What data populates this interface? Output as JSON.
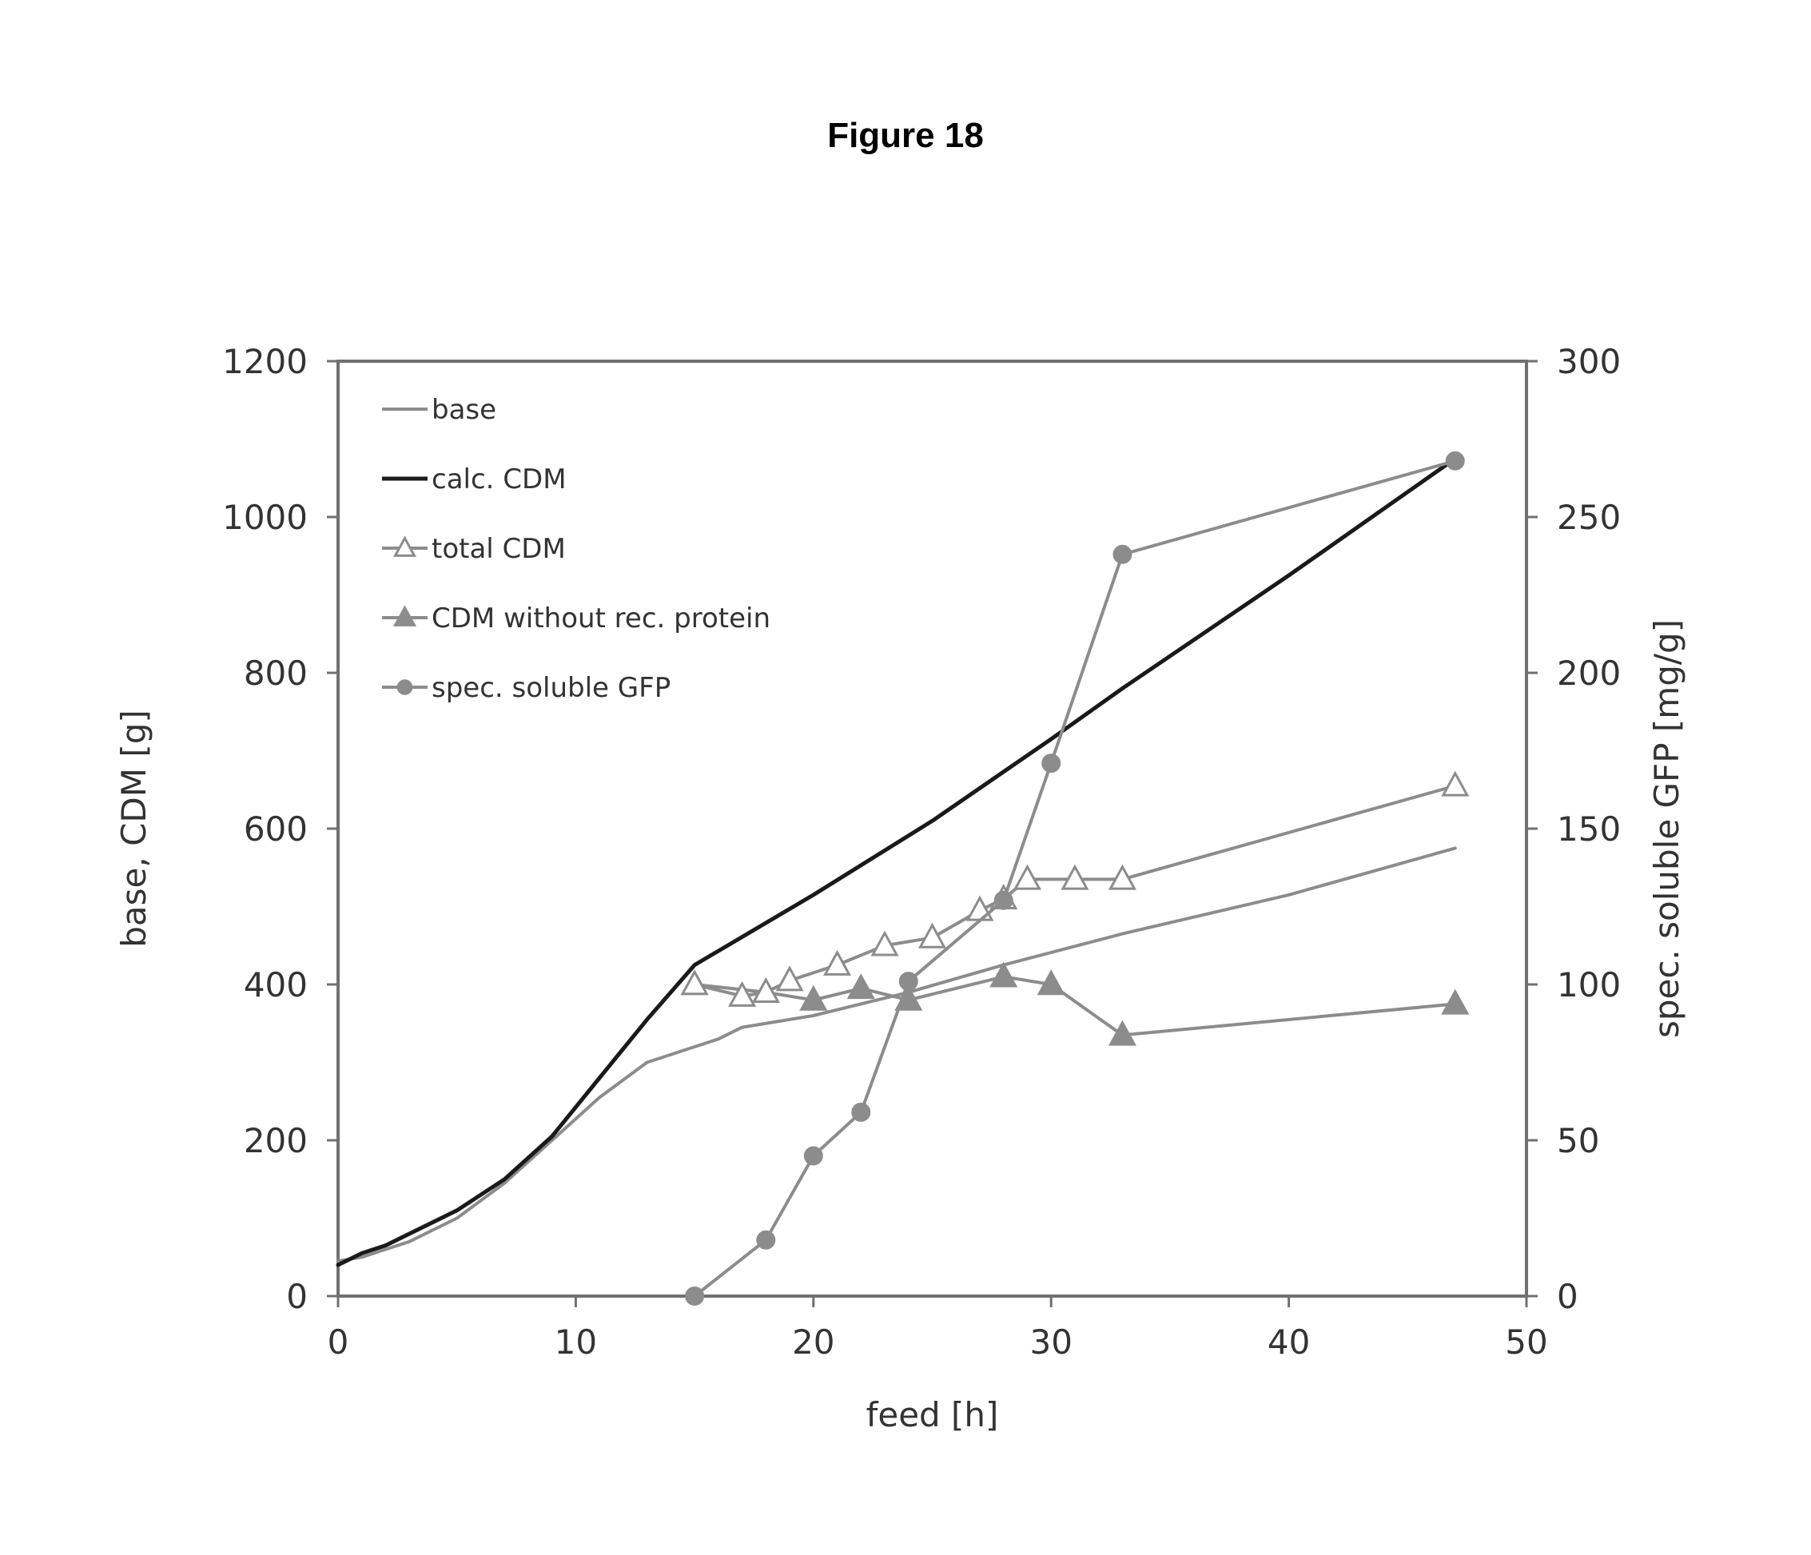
{
  "figure_title": "Figure 18",
  "colors": {
    "calc_cdm": "#1a1a1a",
    "gray_series": "#8c8c8c",
    "axis": "#707070"
  },
  "chart_data": {
    "type": "line",
    "title": "Figure 18",
    "xlabel": "feed [h]",
    "ylabel": "base, CDM [g]",
    "y2label": "spec. soluble GFP [mg/g]",
    "xlim": [
      0,
      50
    ],
    "ylim": [
      0,
      1200
    ],
    "y2lim": [
      0,
      300
    ],
    "xticks": [
      "0",
      "10",
      "20",
      "30",
      "40",
      "50"
    ],
    "yticks": [
      "0",
      "200",
      "400",
      "600",
      "800",
      "1000",
      "1200"
    ],
    "y2ticks": [
      "0",
      "50",
      "100",
      "150",
      "200",
      "250",
      "300"
    ],
    "grid": false,
    "legend_position": "top-left",
    "series": [
      {
        "name": "base",
        "axis": "left",
        "marker": "none",
        "color": "#8c8c8c",
        "x": [
          0,
          1,
          2,
          3,
          5,
          7,
          9,
          11,
          13,
          15,
          16,
          17,
          20,
          24,
          28,
          33,
          40,
          47
        ],
        "y": [
          45,
          50,
          60,
          70,
          100,
          145,
          200,
          255,
          300,
          320,
          330,
          345,
          360,
          390,
          425,
          465,
          515,
          575
        ]
      },
      {
        "name": "calc. CDM",
        "axis": "left",
        "marker": "none",
        "color": "#1a1a1a",
        "x": [
          0,
          1,
          2,
          3,
          5,
          7,
          9,
          11,
          13,
          15,
          20,
          25,
          30,
          33,
          40,
          47
        ],
        "y": [
          40,
          55,
          65,
          80,
          110,
          150,
          205,
          280,
          355,
          425,
          515,
          610,
          715,
          780,
          925,
          1075
        ]
      },
      {
        "name": "total CDM",
        "axis": "left",
        "marker": "open-triangle",
        "color": "#8c8c8c",
        "x": [
          15,
          17,
          18,
          19,
          21,
          23,
          25,
          27,
          28,
          29,
          31,
          33,
          47
        ],
        "y": [
          400,
          385,
          390,
          405,
          425,
          450,
          460,
          495,
          510,
          535,
          535,
          535,
          655
        ]
      },
      {
        "name": "CDM without rec. protein",
        "axis": "left",
        "marker": "filled-triangle",
        "color": "#8c8c8c",
        "x": [
          15,
          18,
          20,
          22,
          24,
          28,
          30,
          33,
          47
        ],
        "y": [
          400,
          390,
          380,
          395,
          380,
          410,
          400,
          335,
          375
        ]
      },
      {
        "name": "spec. soluble GFP",
        "axis": "right",
        "marker": "filled-circle",
        "color": "#8c8c8c",
        "x": [
          15,
          18,
          20,
          22,
          24,
          28,
          30,
          33,
          47
        ],
        "y": [
          0,
          18,
          45,
          59,
          101,
          127,
          171,
          238,
          268
        ]
      }
    ]
  }
}
